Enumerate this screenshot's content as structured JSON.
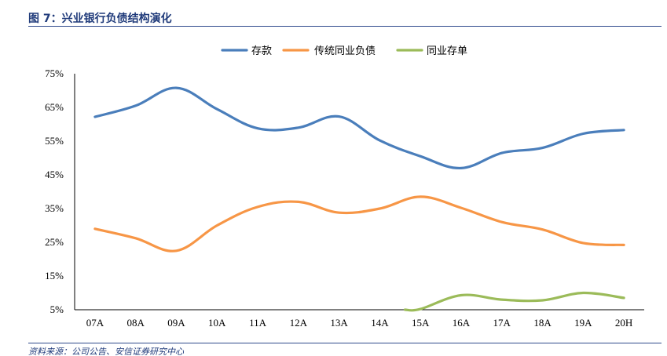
{
  "header": {
    "title": "图 7：兴业银行负债结构演化"
  },
  "footer": {
    "source": "资料来源：公司公告、安信证券研究中心"
  },
  "chart_data": {
    "type": "line",
    "title": "",
    "xlabel": "",
    "ylabel": "",
    "categories": [
      "07A",
      "08A",
      "09A",
      "10A",
      "11A",
      "12A",
      "13A",
      "14A",
      "15A",
      "16A",
      "17A",
      "18A",
      "19A",
      "20H"
    ],
    "y_ticks": [
      "75%",
      "65%",
      "55%",
      "45%",
      "35%",
      "25%",
      "15%",
      "5%"
    ],
    "ylim": [
      5,
      75
    ],
    "grid": false,
    "legend_position": "top-center",
    "series": [
      {
        "name": "存款",
        "color": "#4a7ebb",
        "values": [
          62.2,
          65.5,
          70.8,
          64.5,
          58.8,
          59.0,
          62.3,
          55.2,
          50.5,
          47.0,
          51.5,
          53.0,
          57.2,
          58.3
        ]
      },
      {
        "name": "传统同业负债",
        "color": "#f79646",
        "values": [
          29.0,
          26.2,
          22.5,
          30.0,
          35.5,
          37.0,
          33.8,
          35.0,
          38.5,
          35.2,
          31.0,
          28.8,
          24.8,
          24.2
        ]
      },
      {
        "name": "同业存单",
        "color": "#9bbb59",
        "values": [
          null,
          null,
          null,
          null,
          null,
          null,
          null,
          null,
          5.2,
          9.3,
          8.0,
          7.8,
          10.0,
          8.5
        ]
      }
    ]
  }
}
